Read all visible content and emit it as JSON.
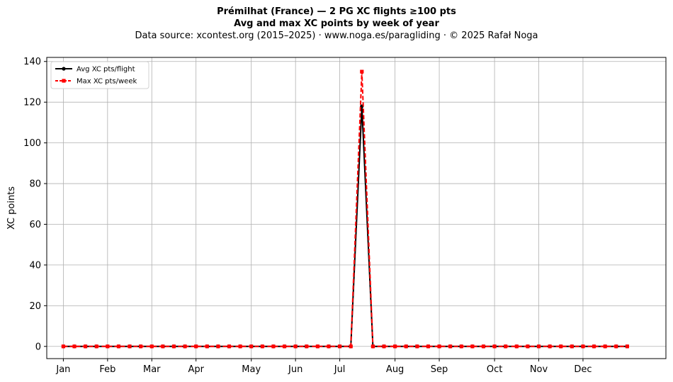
{
  "header": {
    "title": "Prémilhat (France)  —  2 PG XC flights ≥100 pts",
    "subtitle": "Avg and max XC points by week of year",
    "source": "Data source: xcontest.org (2015–2025)  ·  www.noga.es/paragliding  ·  © 2025 Rafał Noga"
  },
  "chart_data": {
    "type": "line",
    "title": "Prémilhat (France)  —  2 PG XC flights ≥100 pts",
    "subtitle": "Avg and max XC points by week of year",
    "xlabel": "",
    "ylabel": "XC points",
    "x_unit": "week of year",
    "xlim": [
      -1.5,
      54.5
    ],
    "ylim": [
      -6,
      142
    ],
    "yticks": [
      0,
      20,
      40,
      60,
      80,
      100,
      120,
      140
    ],
    "xticks": [
      {
        "label": "Jan",
        "week": 0
      },
      {
        "label": "Feb",
        "week": 4
      },
      {
        "label": "Mar",
        "week": 8
      },
      {
        "label": "Apr",
        "week": 12
      },
      {
        "label": "May",
        "week": 17
      },
      {
        "label": "Jun",
        "week": 21
      },
      {
        "label": "Jul",
        "week": 25
      },
      {
        "label": "Aug",
        "week": 30
      },
      {
        "label": "Sep",
        "week": 34
      },
      {
        "label": "Oct",
        "week": 39
      },
      {
        "label": "Nov",
        "week": 43
      },
      {
        "label": "Dec",
        "week": 47
      }
    ],
    "grid": true,
    "legend": "top-left",
    "series": [
      {
        "name": "Avg XC pts/flight",
        "color": "#000000",
        "style": "solid",
        "marker": "circle",
        "x": [
          0,
          1,
          2,
          3,
          4,
          5,
          6,
          7,
          8,
          9,
          10,
          11,
          12,
          13,
          14,
          15,
          16,
          17,
          18,
          19,
          20,
          21,
          22,
          23,
          24,
          25,
          26,
          27,
          28,
          29,
          30,
          31,
          32,
          33,
          34,
          35,
          36,
          37,
          38,
          39,
          40,
          41,
          42,
          43,
          44,
          45,
          46,
          47,
          48,
          49,
          50,
          51
        ],
        "values": [
          0,
          0,
          0,
          0,
          0,
          0,
          0,
          0,
          0,
          0,
          0,
          0,
          0,
          0,
          0,
          0,
          0,
          0,
          0,
          0,
          0,
          0,
          0,
          0,
          0,
          0,
          0,
          118,
          0,
          0,
          0,
          0,
          0,
          0,
          0,
          0,
          0,
          0,
          0,
          0,
          0,
          0,
          0,
          0,
          0,
          0,
          0,
          0,
          0,
          0,
          0,
          0
        ]
      },
      {
        "name": "Max XC pts/week",
        "color": "#ff0000",
        "style": "dashed",
        "marker": "square",
        "x": [
          0,
          1,
          2,
          3,
          4,
          5,
          6,
          7,
          8,
          9,
          10,
          11,
          12,
          13,
          14,
          15,
          16,
          17,
          18,
          19,
          20,
          21,
          22,
          23,
          24,
          25,
          26,
          27,
          28,
          29,
          30,
          31,
          32,
          33,
          34,
          35,
          36,
          37,
          38,
          39,
          40,
          41,
          42,
          43,
          44,
          45,
          46,
          47,
          48,
          49,
          50,
          51
        ],
        "values": [
          0,
          0,
          0,
          0,
          0,
          0,
          0,
          0,
          0,
          0,
          0,
          0,
          0,
          0,
          0,
          0,
          0,
          0,
          0,
          0,
          0,
          0,
          0,
          0,
          0,
          0,
          0,
          135,
          0,
          0,
          0,
          0,
          0,
          0,
          0,
          0,
          0,
          0,
          0,
          0,
          0,
          0,
          0,
          0,
          0,
          0,
          0,
          0,
          0,
          0,
          0,
          0
        ]
      }
    ]
  }
}
